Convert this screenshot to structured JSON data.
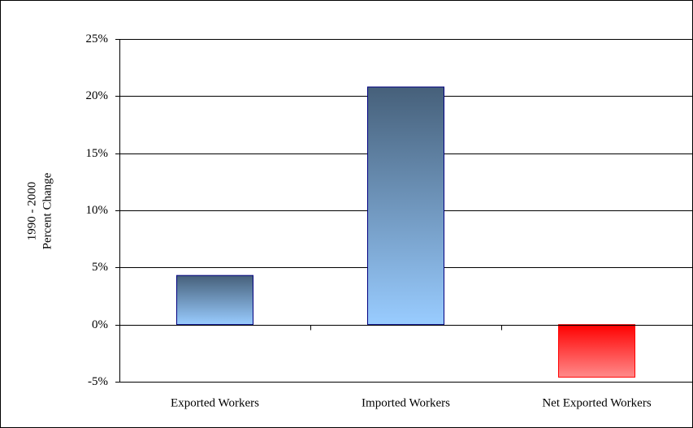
{
  "chart_data": {
    "type": "bar",
    "y_label": [
      "1990 - 2000",
      "Percent Change"
    ],
    "categories": [
      "Exported Workers",
      "Imported Workers",
      "Net Exported Workers"
    ],
    "values": [
      4.3,
      20.8,
      -4.6
    ],
    "gradient": {
      "positive": [
        "#46607a",
        "#99ccff"
      ],
      "negative": [
        "#ff0000",
        "#ff8a8a"
      ]
    },
    "edge_color": "#000080",
    "ylim": [
      -5,
      25
    ],
    "yticks": [
      {
        "value": -5,
        "label": "-5%"
      },
      {
        "value": 0,
        "label": "0%"
      },
      {
        "value": 5,
        "label": "5%"
      },
      {
        "value": 10,
        "label": "10%"
      },
      {
        "value": 15,
        "label": "15%"
      },
      {
        "value": 20,
        "label": "20%"
      },
      {
        "value": 25,
        "label": "25%"
      }
    ],
    "grid": true
  }
}
